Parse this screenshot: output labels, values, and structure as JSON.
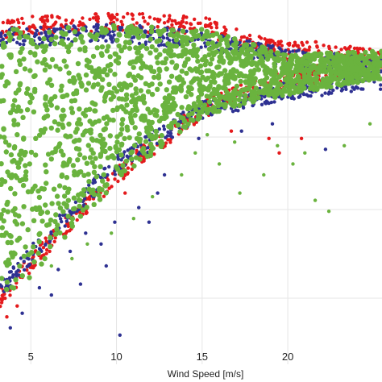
{
  "chart_data": {
    "type": "scatter",
    "title": "",
    "xlabel": "Wind Speed [m/s]",
    "ylabel": "",
    "xlim": [
      3.2,
      25.5
    ],
    "ylim": [
      0,
      1
    ],
    "x_ticks": [
      5,
      10,
      15,
      20
    ],
    "x_tick_labels": [
      "5",
      "10",
      "15",
      "20"
    ],
    "grid": true,
    "legend": "none",
    "colors": {
      "red": "#e41a1c",
      "blue": "#2e3192",
      "green": "#6ab33e"
    },
    "series": [
      {
        "color": "#e41a1c",
        "envelope": [
          [
            3.2,
            0.18,
            0.92
          ],
          [
            5,
            0.28,
            0.93
          ],
          [
            10,
            0.52,
            0.94
          ],
          [
            15,
            0.7,
            0.93
          ],
          [
            18,
            0.76,
            0.88
          ],
          [
            20,
            0.78,
            0.86
          ],
          [
            22,
            0.8,
            0.86
          ],
          [
            25,
            0.82,
            0.84
          ]
        ],
        "outliers": [
          [
            3.6,
            0.13
          ],
          [
            4.2,
            0.16
          ],
          [
            5.2,
            0.27
          ],
          [
            6.1,
            0.31
          ],
          [
            8.0,
            0.43
          ],
          [
            10.5,
            0.47
          ],
          [
            19.6,
            0.85
          ],
          [
            20.4,
            0.86
          ],
          [
            21.8,
            0.86
          ],
          [
            22.5,
            0.85
          ],
          [
            23.6,
            0.86
          ],
          [
            24.2,
            0.84
          ],
          [
            20.8,
            0.62
          ],
          [
            19.5,
            0.58
          ],
          [
            18.9,
            0.62
          ],
          [
            16.7,
            0.64
          ]
        ]
      },
      {
        "color": "#2e3192",
        "envelope": [
          [
            3.2,
            0.2,
            0.9
          ],
          [
            5,
            0.3,
            0.9
          ],
          [
            10,
            0.55,
            0.91
          ],
          [
            15,
            0.7,
            0.89
          ],
          [
            20,
            0.75,
            0.84
          ],
          [
            25,
            0.78,
            0.82
          ]
        ],
        "outliers": [
          [
            3.8,
            0.1
          ],
          [
            4.5,
            0.14
          ],
          [
            5.5,
            0.21
          ],
          [
            6.6,
            0.26
          ],
          [
            7.3,
            0.31
          ],
          [
            8.2,
            0.36
          ],
          [
            9.1,
            0.33
          ],
          [
            9.9,
            0.39
          ],
          [
            11.3,
            0.43
          ],
          [
            12.4,
            0.47
          ],
          [
            10.2,
            0.08
          ],
          [
            14.8,
            0.62
          ],
          [
            17.3,
            0.64
          ],
          [
            19.1,
            0.66
          ],
          [
            22.2,
            0.59
          ],
          [
            7.9,
            0.22
          ],
          [
            9.4,
            0.27
          ],
          [
            6.2,
            0.19
          ],
          [
            12.8,
            0.52
          ],
          [
            11.9,
            0.39
          ]
        ]
      },
      {
        "color": "#6ab33e",
        "envelope": [
          [
            3.2,
            0.18,
            0.92
          ],
          [
            5,
            0.24,
            0.92
          ],
          [
            10,
            0.5,
            0.93
          ],
          [
            15,
            0.68,
            0.92
          ],
          [
            18,
            0.72,
            0.88
          ],
          [
            20,
            0.74,
            0.85
          ],
          [
            25,
            0.78,
            0.86
          ]
        ],
        "outliers": [
          [
            6.2,
            0.27
          ],
          [
            7.4,
            0.29
          ],
          [
            8.3,
            0.33
          ],
          [
            9.7,
            0.36
          ],
          [
            11.0,
            0.4
          ],
          [
            12.1,
            0.46
          ],
          [
            13.8,
            0.52
          ],
          [
            14.6,
            0.58
          ],
          [
            16.0,
            0.55
          ],
          [
            17.2,
            0.47
          ],
          [
            18.6,
            0.52
          ],
          [
            20.3,
            0.55
          ],
          [
            21.6,
            0.45
          ],
          [
            22.4,
            0.42
          ],
          [
            23.3,
            0.6
          ],
          [
            24.8,
            0.66
          ],
          [
            16.9,
            0.61
          ],
          [
            19.4,
            0.6
          ],
          [
            15.3,
            0.63
          ],
          [
            21.0,
            0.58
          ]
        ]
      }
    ]
  }
}
